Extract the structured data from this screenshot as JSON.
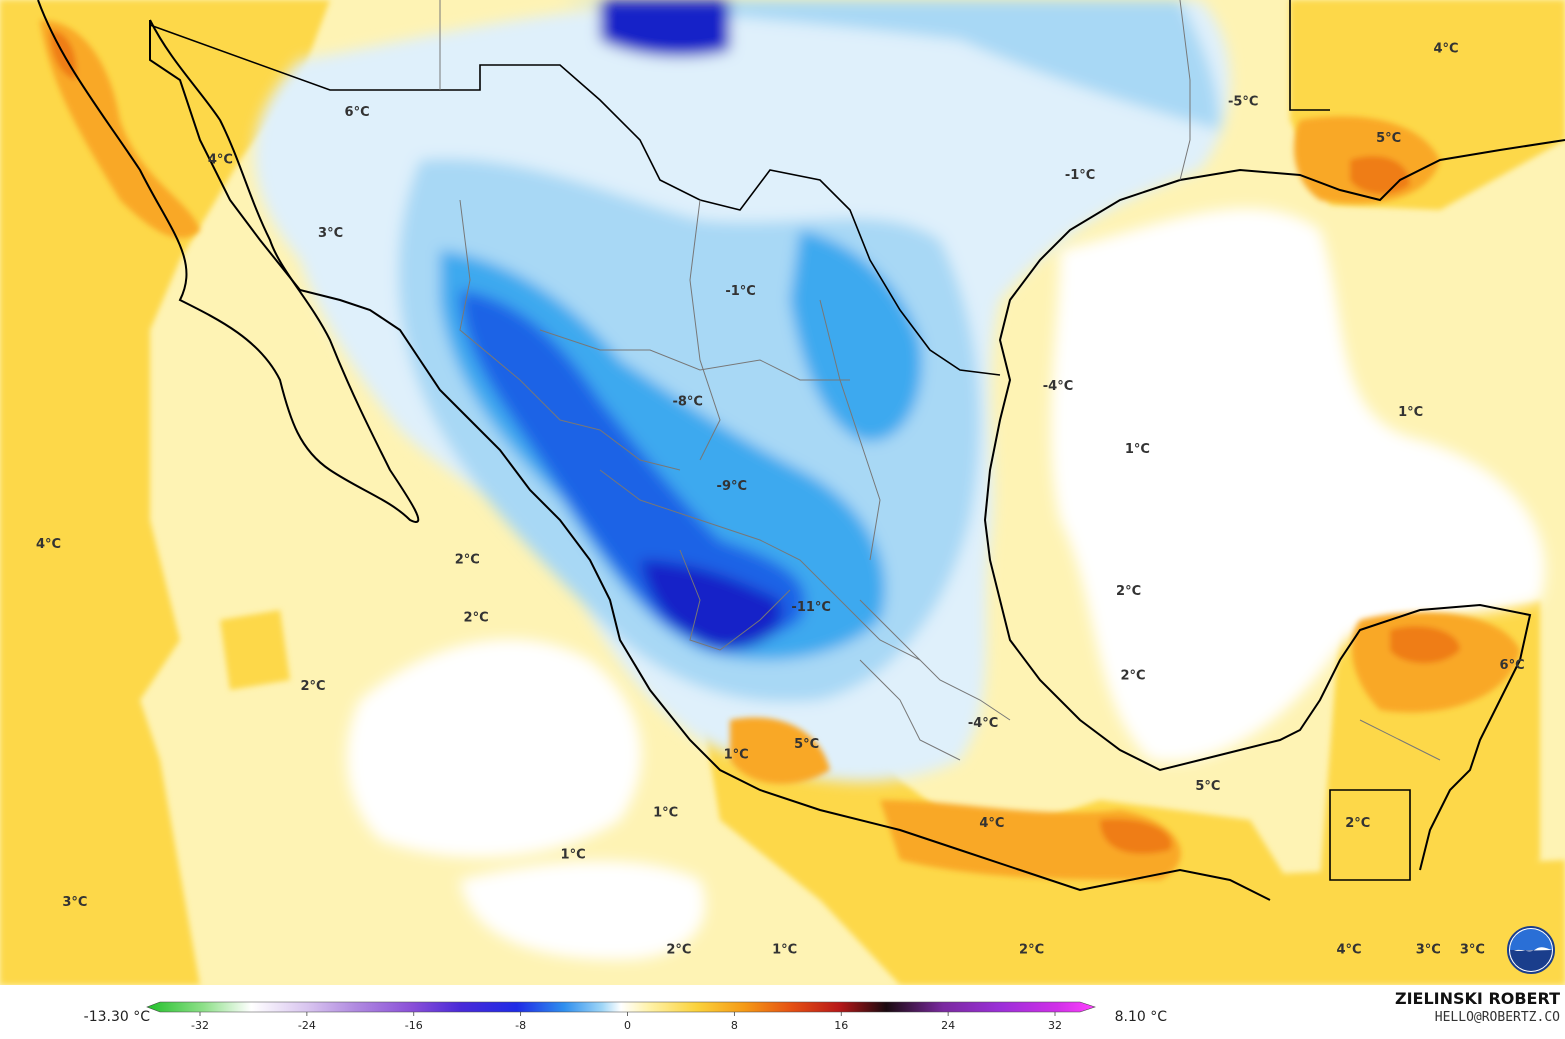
{
  "colors": {
    "ocean_warm": "#fef3b4",
    "land_warm": "#fdd84a",
    "warm_orange": "#f9a825",
    "hot_orange": "#ef7d16",
    "neutral_white": "#ffffff",
    "cool_pale": "#dff0fb",
    "cool_light": "#a8d8f5",
    "cool_mid": "#3ea9ef",
    "cool_deep": "#1f63e6",
    "cool_dark": "#1622c8",
    "coast": "#000000",
    "state_border": "#777777"
  },
  "map": {
    "labels": [
      {
        "text": "6°C",
        "lon": -112.2,
        "lat": 30.5
      },
      {
        "text": "4°C",
        "lon": -115.3,
        "lat": 29.6
      },
      {
        "text": "3°C",
        "lon": -112.8,
        "lat": 28.2
      },
      {
        "text": "4°C",
        "lon": -119.2,
        "lat": 22.3
      },
      {
        "text": "2°C",
        "lon": -109.7,
        "lat": 22.0
      },
      {
        "text": "-8°C",
        "lon": -104.7,
        "lat": 25.0
      },
      {
        "text": "-9°C",
        "lon": -103.7,
        "lat": 23.4
      },
      {
        "text": "-1°C",
        "lon": -103.5,
        "lat": 27.1
      },
      {
        "text": "-11°C",
        "lon": -101.9,
        "lat": 21.1
      },
      {
        "text": "-4°C",
        "lon": -96.3,
        "lat": 25.3
      },
      {
        "text": "-1°C",
        "lon": -95.8,
        "lat": 29.3
      },
      {
        "text": "-5°C",
        "lon": -92.1,
        "lat": 30.7
      },
      {
        "text": "4°C",
        "lon": -87.5,
        "lat": 31.7
      },
      {
        "text": "5°C",
        "lon": -88.8,
        "lat": 30.0
      },
      {
        "text": "1°C",
        "lon": -88.3,
        "lat": 24.8
      },
      {
        "text": "1°C",
        "lon": -94.5,
        "lat": 24.1
      },
      {
        "text": "2°C",
        "lon": -94.7,
        "lat": 21.4
      },
      {
        "text": "2°C",
        "lon": -94.6,
        "lat": 19.8
      },
      {
        "text": "-4°C",
        "lon": -98.0,
        "lat": 18.9
      },
      {
        "text": "5°C",
        "lon": -102.0,
        "lat": 18.5
      },
      {
        "text": "1°C",
        "lon": -103.6,
        "lat": 18.3
      },
      {
        "text": "2°C",
        "lon": -109.5,
        "lat": 20.9
      },
      {
        "text": "2°C",
        "lon": -113.2,
        "lat": 19.6
      },
      {
        "text": "1°C",
        "lon": -105.2,
        "lat": 17.2
      },
      {
        "text": "1°C",
        "lon": -107.3,
        "lat": 16.4
      },
      {
        "text": "4°C",
        "lon": -97.8,
        "lat": 17.0
      },
      {
        "text": "5°C",
        "lon": -92.9,
        "lat": 17.7
      },
      {
        "text": "2°C",
        "lon": -89.5,
        "lat": 17.0
      },
      {
        "text": "6°C",
        "lon": -86.0,
        "lat": 20.0
      },
      {
        "text": "3°C",
        "lon": -118.6,
        "lat": 15.5
      },
      {
        "text": "2°C",
        "lon": -104.9,
        "lat": 14.6
      },
      {
        "text": "1°C",
        "lon": -102.5,
        "lat": 14.6
      },
      {
        "text": "2°C",
        "lon": -96.9,
        "lat": 14.6
      },
      {
        "text": "4°C",
        "lon": -89.7,
        "lat": 14.6
      },
      {
        "text": "3°C",
        "lon": -87.9,
        "lat": 14.6
      },
      {
        "text": "3°C",
        "lon": -86.9,
        "lat": 14.6
      }
    ]
  },
  "legend": {
    "min_label": "-13.30 °C",
    "max_label": "8.10 °C",
    "ticks": [
      "-32",
      "-24",
      "-16",
      "-8",
      "0",
      "8",
      "16",
      "24",
      "32"
    ]
  },
  "branding": {
    "name": "ZIELINSKI ROBERT",
    "email": "HELLO@ROBERTZ.CO",
    "logo_text": "NOAA"
  }
}
